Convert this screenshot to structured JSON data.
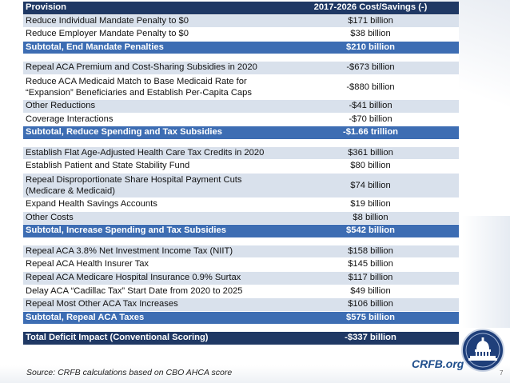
{
  "table": {
    "header": {
      "provision": "Provision",
      "cost": "2017-2026 Cost/Savings (-)"
    },
    "section1": [
      {
        "label": "Reduce Individual Mandate Penalty to $0",
        "value": "$171 billion"
      },
      {
        "label": "Reduce Employer Mandate Penalty to $0",
        "value": "$38 billion"
      }
    ],
    "subtotal1": {
      "label": "Subtotal, End Mandate Penalties",
      "value": "$210 billion"
    },
    "section2": [
      {
        "label": "Repeal ACA Premium and Cost-Sharing Subsidies in 2020",
        "value": "-$673 billion"
      },
      {
        "label_line1": "Reduce ACA Medicaid Match to Base Medicaid Rate for",
        "label_line2": "“Expansion” Beneficiaries and Establish Per-Capita Caps",
        "value": "-$880 billion"
      },
      {
        "label": "Other Reductions",
        "value": "-$41 billion"
      },
      {
        "label": "Coverage Interactions",
        "value": "-$70 billion"
      }
    ],
    "subtotal2": {
      "label": "Subtotal, Reduce Spending and Tax Subsidies",
      "value": "-$1.66 trillion"
    },
    "section3": [
      {
        "label": "Establish Flat Age-Adjusted Health Care Tax Credits in 2020",
        "value": "$361 billion"
      },
      {
        "label": "Establish Patient and State Stability Fund",
        "value": "$80 billion"
      },
      {
        "label_line1": "Repeal Disproportionate Share Hospital Payment Cuts",
        "label_line2": "(Medicare & Medicaid)",
        "value": "$74 billion"
      },
      {
        "label": "Expand Health Savings Accounts",
        "value": "$19 billion"
      },
      {
        "label": "Other Costs",
        "value": "$8 billion"
      }
    ],
    "subtotal3": {
      "label": "Subtotal, Increase Spending and Tax Subsidies",
      "value": "$542 billion"
    },
    "section4": [
      {
        "label": "Repeal ACA 3.8% Net Investment Income Tax (NIIT)",
        "value": "$158 billion"
      },
      {
        "label": "Repeal ACA Health Insurer Tax",
        "value": "$145 billion"
      },
      {
        "label": "Repeal ACA Medicare Hospital Insurance 0.9% Surtax",
        "value": "$117 billion"
      },
      {
        "label": "Delay ACA “Cadillac Tax” Start Date from 2020 to 2025",
        "value": "$49 billion"
      },
      {
        "label": "Repeal Most Other ACA Tax Increases",
        "value": "$106 billion"
      }
    ],
    "subtotal4": {
      "label": "Subtotal, Repeal ACA Taxes",
      "value": "$575 billion"
    },
    "total": {
      "label": "Total Deficit Impact (Conventional Scoring)",
      "value": "-$337 billion"
    }
  },
  "footer": {
    "source": "Source: CRFB calculations based on CBO AHCA score",
    "brand": "CRFB.org",
    "page_number": "7"
  },
  "colors": {
    "header": "#1f3864",
    "subtotal": "#3d6db3",
    "band": "#d9e1ec",
    "brand": "#1f4e8c"
  },
  "icons": [
    "capitol-seal-logo"
  ]
}
